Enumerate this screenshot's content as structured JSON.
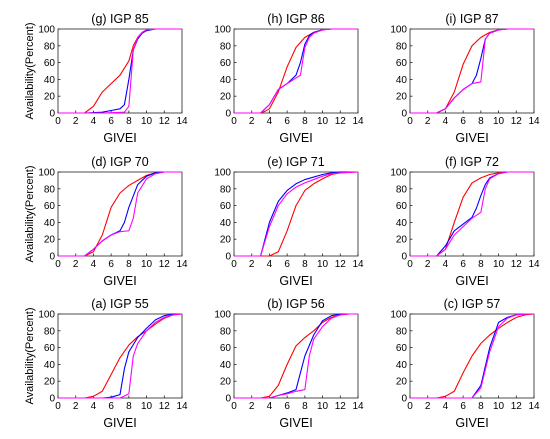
{
  "chart_data": [
    {
      "type": "line",
      "title": "(g) IGP 85",
      "xlabel": "GIVEI",
      "ylabel": "Availability(Percent)",
      "xlim": [
        0,
        14
      ],
      "ylim": [
        0,
        100
      ],
      "xticks": [
        0,
        2,
        4,
        6,
        8,
        10,
        12,
        14
      ],
      "yticks": [
        0,
        20,
        40,
        60,
        80,
        100
      ],
      "series": [
        {
          "color": "#ff0000",
          "x": [
            0,
            3,
            4,
            5,
            6,
            7,
            8,
            8.5,
            9,
            9.5,
            10,
            11,
            12,
            14
          ],
          "y": [
            0,
            0,
            8,
            25,
            35,
            45,
            62,
            80,
            90,
            96,
            99,
            100,
            100,
            100
          ]
        },
        {
          "color": "#0000ff",
          "x": [
            0,
            3,
            5,
            6,
            7,
            7.5,
            8,
            8.5,
            9,
            9.5,
            10,
            11,
            14
          ],
          "y": [
            0,
            0,
            1,
            3,
            5,
            10,
            40,
            75,
            88,
            95,
            98,
            100,
            100
          ]
        },
        {
          "color": "#ff00ff",
          "x": [
            0,
            3,
            5,
            7.5,
            8,
            8.5,
            9,
            9.5,
            10,
            11,
            14
          ],
          "y": [
            0,
            0,
            0,
            1,
            8,
            75,
            90,
            96,
            99,
            100,
            100
          ]
        }
      ]
    },
    {
      "type": "line",
      "title": "(h) IGP 86",
      "xlabel": "GIVEI",
      "ylabel": "",
      "xlim": [
        0,
        14
      ],
      "ylim": [
        0,
        100
      ],
      "xticks": [
        0,
        2,
        4,
        6,
        8,
        10,
        12,
        14
      ],
      "yticks": [
        0,
        20,
        40,
        60,
        80,
        100
      ],
      "series": [
        {
          "color": "#ff0000",
          "x": [
            0,
            3,
            3.5,
            4,
            5,
            6,
            7,
            8,
            9,
            10,
            11,
            12,
            14
          ],
          "y": [
            0,
            0,
            2,
            5,
            25,
            55,
            78,
            90,
            96,
            99,
            100,
            100,
            100
          ]
        },
        {
          "color": "#0000ff",
          "x": [
            0,
            3,
            4,
            5,
            6,
            7,
            7.5,
            8,
            8.5,
            9,
            10,
            11,
            14
          ],
          "y": [
            0,
            0,
            10,
            28,
            35,
            45,
            60,
            82,
            92,
            96,
            99,
            100,
            100
          ]
        },
        {
          "color": "#ff00ff",
          "x": [
            0,
            3,
            4,
            5,
            6,
            7.5,
            8,
            8.5,
            9,
            10,
            11,
            14
          ],
          "y": [
            0,
            0,
            10,
            28,
            35,
            45,
            78,
            90,
            95,
            99,
            100,
            100
          ]
        }
      ]
    },
    {
      "type": "line",
      "title": "(i) IGP 87",
      "xlabel": "GIVEI",
      "ylabel": "",
      "xlim": [
        0,
        14
      ],
      "ylim": [
        0,
        100
      ],
      "xticks": [
        0,
        2,
        4,
        6,
        8,
        10,
        12,
        14
      ],
      "yticks": [
        0,
        20,
        40,
        60,
        80,
        100
      ],
      "series": [
        {
          "color": "#ff0000",
          "x": [
            0,
            3,
            4,
            5,
            6,
            7,
            8,
            9,
            10,
            11,
            12,
            14
          ],
          "y": [
            0,
            0,
            5,
            25,
            58,
            80,
            90,
            96,
            99,
            100,
            100,
            100
          ]
        },
        {
          "color": "#0000ff",
          "x": [
            0,
            3,
            4,
            5,
            6,
            7,
            7.5,
            8,
            8.5,
            9,
            10,
            11,
            14
          ],
          "y": [
            0,
            0,
            5,
            18,
            28,
            35,
            45,
            65,
            88,
            95,
            99,
            100,
            100
          ]
        },
        {
          "color": "#ff00ff",
          "x": [
            0,
            3,
            4,
            5,
            6,
            7,
            8,
            8.5,
            9,
            10,
            11,
            14
          ],
          "y": [
            0,
            0,
            5,
            18,
            28,
            35,
            37,
            88,
            95,
            99,
            100,
            100
          ]
        }
      ]
    },
    {
      "type": "line",
      "title": "(d) IGP 70",
      "xlabel": "GIVEI",
      "ylabel": "Availability(Percent)",
      "xlim": [
        0,
        14
      ],
      "ylim": [
        0,
        100
      ],
      "xticks": [
        0,
        2,
        4,
        6,
        8,
        10,
        12,
        14
      ],
      "yticks": [
        0,
        20,
        40,
        60,
        80,
        100
      ],
      "series": [
        {
          "color": "#ff0000",
          "x": [
            0,
            3,
            4,
            5,
            6,
            7,
            8,
            9,
            10,
            11,
            12,
            14
          ],
          "y": [
            0,
            0,
            5,
            25,
            58,
            75,
            84,
            90,
            96,
            99,
            100,
            100
          ]
        },
        {
          "color": "#0000ff",
          "x": [
            0,
            3,
            4,
            5,
            6,
            7,
            7.5,
            8,
            9,
            10,
            11,
            12,
            14
          ],
          "y": [
            0,
            0,
            8,
            18,
            25,
            30,
            40,
            58,
            85,
            95,
            99,
            100,
            100
          ]
        },
        {
          "color": "#ff00ff",
          "x": [
            0,
            3,
            4,
            5,
            6,
            7,
            8,
            8.5,
            9,
            10,
            11,
            12,
            14
          ],
          "y": [
            0,
            0,
            8,
            18,
            25,
            29,
            30,
            45,
            75,
            92,
            98,
            100,
            100
          ]
        }
      ]
    },
    {
      "type": "line",
      "title": "(e) IGP 71",
      "xlabel": "GIVEI",
      "ylabel": "",
      "xlim": [
        0,
        14
      ],
      "ylim": [
        0,
        100
      ],
      "xticks": [
        0,
        2,
        4,
        6,
        8,
        10,
        12,
        14
      ],
      "yticks": [
        0,
        20,
        40,
        60,
        80,
        100
      ],
      "series": [
        {
          "color": "#ff0000",
          "x": [
            0,
            4,
            5,
            6,
            7,
            8,
            9,
            10,
            11,
            12,
            14
          ],
          "y": [
            0,
            0,
            5,
            30,
            60,
            78,
            86,
            92,
            97,
            99,
            100
          ]
        },
        {
          "color": "#0000ff",
          "x": [
            0,
            3,
            4,
            5,
            6,
            7,
            8,
            9,
            10,
            11,
            12,
            14
          ],
          "y": [
            0,
            0,
            40,
            65,
            78,
            86,
            91,
            94,
            97,
            99,
            100,
            100
          ]
        },
        {
          "color": "#ff00ff",
          "x": [
            0,
            3,
            4,
            5,
            6,
            7,
            8,
            9,
            10,
            11,
            12,
            14
          ],
          "y": [
            0,
            0,
            35,
            60,
            74,
            82,
            87,
            91,
            95,
            98,
            99,
            100
          ]
        }
      ]
    },
    {
      "type": "line",
      "title": "(f) IGP 72",
      "xlabel": "GIVEI",
      "ylabel": "",
      "xlim": [
        0,
        14
      ],
      "ylim": [
        0,
        100
      ],
      "xticks": [
        0,
        2,
        4,
        6,
        8,
        10,
        12,
        14
      ],
      "yticks": [
        0,
        20,
        40,
        60,
        80,
        100
      ],
      "series": [
        {
          "color": "#ff0000",
          "x": [
            0,
            3,
            4,
            5,
            6,
            7,
            8,
            9,
            10,
            11,
            12,
            14
          ],
          "y": [
            0,
            0,
            8,
            40,
            70,
            87,
            93,
            97,
            99,
            100,
            100,
            100
          ]
        },
        {
          "color": "#0000ff",
          "x": [
            0,
            3,
            4,
            5,
            6,
            7,
            7.5,
            8,
            8.5,
            9,
            10,
            11,
            14
          ],
          "y": [
            0,
            0,
            12,
            30,
            38,
            46,
            57,
            72,
            85,
            93,
            98,
            100,
            100
          ]
        },
        {
          "color": "#ff00ff",
          "x": [
            0,
            3,
            4,
            5,
            6,
            7,
            8,
            8.5,
            9,
            10,
            11,
            14
          ],
          "y": [
            0,
            0,
            8,
            25,
            35,
            45,
            52,
            80,
            92,
            98,
            100,
            100
          ]
        }
      ]
    },
    {
      "type": "line",
      "title": "(a) IGP 55",
      "xlabel": "GIVEI",
      "ylabel": "Availability(Percent)",
      "xlim": [
        0,
        14
      ],
      "ylim": [
        0,
        100
      ],
      "xticks": [
        0,
        2,
        4,
        6,
        8,
        10,
        12,
        14
      ],
      "yticks": [
        0,
        20,
        40,
        60,
        80,
        100
      ],
      "series": [
        {
          "color": "#ff0000",
          "x": [
            0,
            3,
            4,
            5,
            6,
            7,
            8,
            9,
            10,
            11,
            12,
            13,
            14
          ],
          "y": [
            0,
            0,
            2,
            8,
            28,
            48,
            63,
            73,
            80,
            88,
            95,
            99,
            100
          ]
        },
        {
          "color": "#0000ff",
          "x": [
            0,
            3,
            5,
            6,
            7,
            7.5,
            8,
            9,
            10,
            11,
            12,
            13,
            14
          ],
          "y": [
            0,
            0,
            0,
            1,
            4,
            35,
            55,
            72,
            83,
            93,
            98,
            100,
            100
          ]
        },
        {
          "color": "#ff00ff",
          "x": [
            0,
            3,
            7,
            8,
            8.5,
            9,
            10,
            11,
            12,
            13,
            14
          ],
          "y": [
            0,
            0,
            0,
            5,
            50,
            65,
            80,
            90,
            96,
            99,
            100
          ]
        }
      ]
    },
    {
      "type": "line",
      "title": "(b) IGP 56",
      "xlabel": "GIVEI",
      "ylabel": "",
      "xlim": [
        0,
        14
      ],
      "ylim": [
        0,
        100
      ],
      "xticks": [
        0,
        2,
        4,
        6,
        8,
        10,
        12,
        14
      ],
      "yticks": [
        0,
        20,
        40,
        60,
        80,
        100
      ],
      "series": [
        {
          "color": "#ff0000",
          "x": [
            0,
            3,
            4,
            5,
            6,
            7,
            8,
            9,
            10,
            11,
            12,
            13,
            14
          ],
          "y": [
            0,
            0,
            2,
            15,
            40,
            62,
            72,
            80,
            90,
            96,
            99,
            100,
            100
          ]
        },
        {
          "color": "#0000ff",
          "x": [
            0,
            4,
            5,
            6,
            7,
            8,
            9,
            10,
            11,
            12,
            13,
            14
          ],
          "y": [
            0,
            0,
            3,
            6,
            10,
            50,
            75,
            92,
            98,
            100,
            100,
            100
          ]
        },
        {
          "color": "#ff00ff",
          "x": [
            0,
            4,
            5,
            6,
            7,
            8,
            8.5,
            9,
            10,
            11,
            12,
            13,
            14
          ],
          "y": [
            0,
            0,
            3,
            5,
            8,
            10,
            50,
            70,
            85,
            95,
            99,
            100,
            100
          ]
        }
      ]
    },
    {
      "type": "line",
      "title": "(c) IGP 57",
      "xlabel": "GIVEI",
      "ylabel": "",
      "xlim": [
        0,
        14
      ],
      "ylim": [
        0,
        100
      ],
      "xticks": [
        0,
        2,
        4,
        6,
        8,
        10,
        12,
        14
      ],
      "yticks": [
        0,
        20,
        40,
        60,
        80,
        100
      ],
      "series": [
        {
          "color": "#ff0000",
          "x": [
            0,
            3,
            4,
            5,
            6,
            7,
            8,
            9,
            10,
            11,
            12,
            13,
            14
          ],
          "y": [
            0,
            0,
            2,
            8,
            30,
            50,
            65,
            75,
            83,
            90,
            96,
            99,
            100
          ]
        },
        {
          "color": "#0000ff",
          "x": [
            0,
            7,
            8,
            9,
            10,
            11,
            12,
            13,
            14
          ],
          "y": [
            0,
            0,
            15,
            60,
            90,
            96,
            99,
            100,
            100
          ]
        },
        {
          "color": "#ff00ff",
          "x": [
            0,
            7,
            8,
            9,
            10,
            11,
            12,
            13,
            14
          ],
          "y": [
            0,
            0,
            12,
            55,
            85,
            95,
            99,
            100,
            100
          ]
        }
      ]
    }
  ]
}
